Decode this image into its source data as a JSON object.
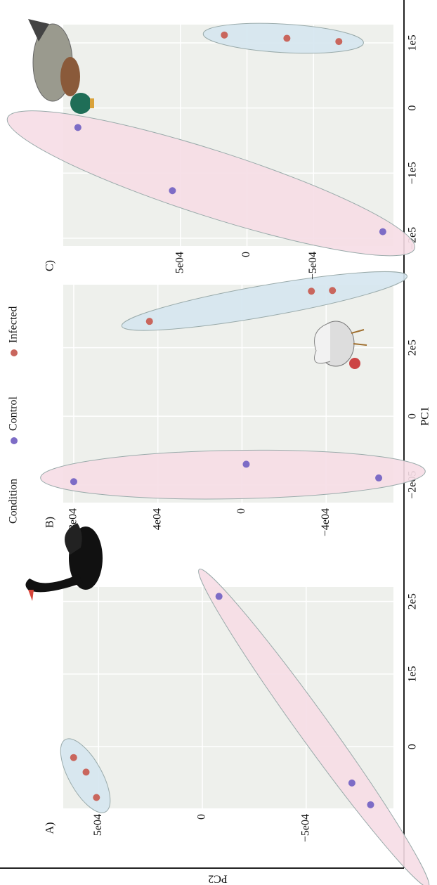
{
  "legend_title": "Condition",
  "xlabel": "PC1",
  "ylabel": "PC2",
  "chart_data": [
    {
      "type": "scatter",
      "title": "A)",
      "xlim": [
        -85000,
        220000
      ],
      "ylim": [
        -92000,
        67000
      ],
      "xticks": [
        0,
        {
          "value": 100000,
          "label": "1e5"
        },
        {
          "value": 200000,
          "label": "2e5"
        }
      ],
      "yticks": [
        {
          "value": 50000,
          "label": "5e04"
        },
        0,
        {
          "value": -50000,
          "label": "−5e04"
        }
      ],
      "grid": true,
      "series": [
        {
          "name": "Control",
          "color": "#7d6cc6",
          "x": [
            -80000,
            -50000,
            207000
          ],
          "values": [
            -81000,
            -72000,
            -8000
          ]
        },
        {
          "name": "Infected",
          "color": "#c9665d",
          "x": [
            -15000,
            -35000,
            -70000
          ],
          "values": [
            62000,
            56000,
            51000
          ]
        }
      ]
    },
    {
      "type": "scatter",
      "title": "B)",
      "xlim": [
        -252000,
        384000
      ],
      "ylim": [
        -72000,
        85000
      ],
      "xticks": [
        {
          "value": -200000,
          "label": "−2e05"
        },
        0,
        {
          "value": 200000,
          "label": "2e5"
        }
      ],
      "yticks": [
        {
          "value": 80000,
          "label": "8e04"
        },
        {
          "value": 40000,
          "label": "4e04"
        },
        0,
        {
          "value": -40000,
          "label": "−4e04"
        }
      ],
      "grid": true,
      "series": [
        {
          "name": "Control",
          "color": "#7d6cc6",
          "x": [
            -191000,
            -140000,
            -180000
          ],
          "values": [
            80000,
            -2000,
            -65000
          ]
        },
        {
          "name": "Infected",
          "color": "#c9665d",
          "x": [
            277000,
            365000,
            367000
          ],
          "values": [
            44000,
            -33000,
            -43000
          ]
        }
      ]
    },
    {
      "type": "scatter",
      "title": "C)",
      "xlim": [
        -212000,
        128000
      ],
      "ylim": [
        -110000,
        138000
      ],
      "xticks": [
        {
          "value": -200000,
          "label": "−2e5"
        },
        {
          "value": -100000,
          "label": "−1e5"
        },
        0,
        {
          "value": 100000,
          "label": "1e5"
        }
      ],
      "yticks": [
        {
          "value": 50000,
          "label": "5e04"
        },
        0,
        {
          "value": -50000,
          "label": "−5e04"
        }
      ],
      "grid": true,
      "series": [
        {
          "name": "Control",
          "color": "#7d6cc6",
          "x": [
            -30000,
            -127000,
            -190000
          ],
          "values": [
            127000,
            56000,
            -102000
          ]
        },
        {
          "name": "Infected",
          "color": "#c9665d",
          "x": [
            112000,
            107000,
            102000
          ],
          "values": [
            17000,
            -30000,
            -69000
          ]
        }
      ]
    }
  ]
}
